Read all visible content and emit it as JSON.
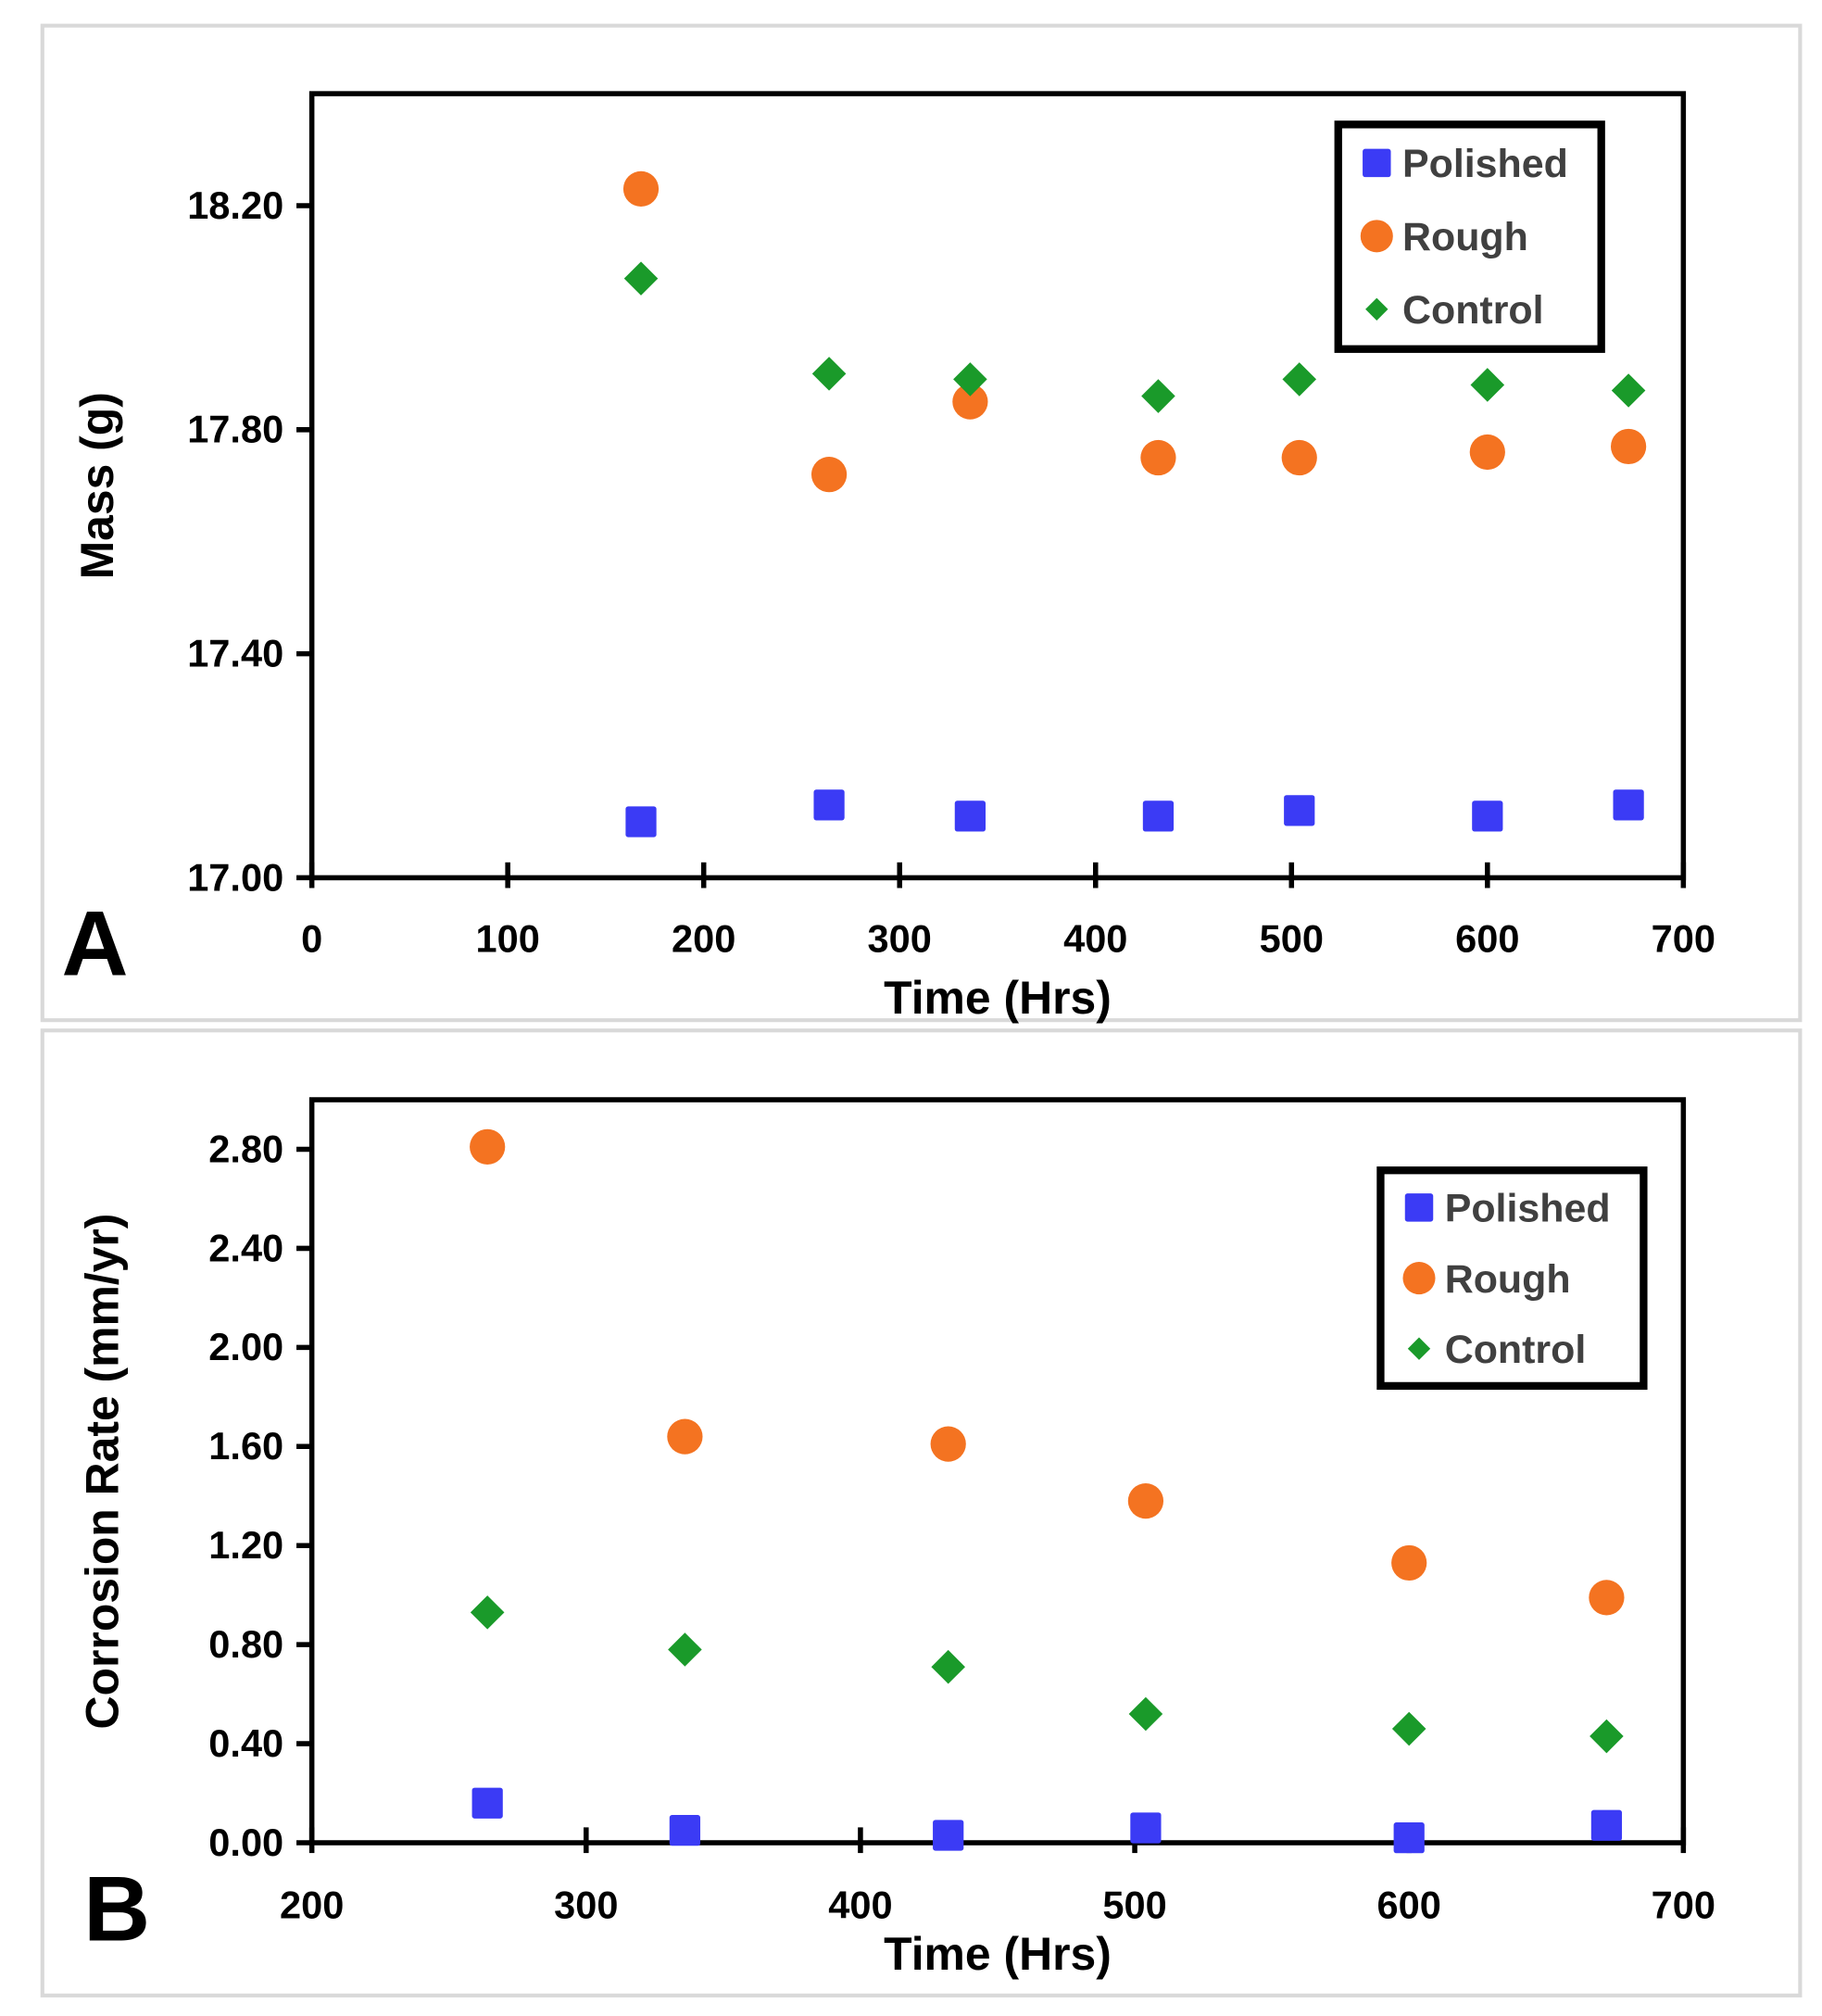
{
  "colors": {
    "Polished": "#3b3bf5",
    "Rough": "#f47321",
    "Control": "#1a9a2a"
  },
  "chart_data": [
    {
      "type": "scatter",
      "panel_label": "A",
      "title": "",
      "xlabel": "Time (Hrs)",
      "ylabel": "Mass (g)",
      "xlim": [
        0,
        700
      ],
      "ylim": [
        17.0,
        18.4
      ],
      "xticks": [
        0,
        100,
        200,
        300,
        400,
        500,
        600,
        700
      ],
      "xtick_labels": [
        "0",
        "100",
        "200",
        "300",
        "400",
        "500",
        "600",
        "700"
      ],
      "yticks": [
        17.0,
        17.4,
        17.8,
        18.2
      ],
      "ytick_labels": [
        "17.00",
        "17.40",
        "17.80",
        "18.20"
      ],
      "grid": false,
      "legend_position": "top-right",
      "series": [
        {
          "name": "Polished",
          "marker": "square",
          "x": [
            168,
            264,
            336,
            432,
            504,
            600,
            672
          ],
          "y": [
            17.1,
            17.13,
            17.11,
            17.11,
            17.12,
            17.11,
            17.13
          ]
        },
        {
          "name": "Rough",
          "marker": "circle",
          "x": [
            168,
            264,
            336,
            432,
            504,
            600,
            672
          ],
          "y": [
            18.23,
            17.72,
            17.85,
            17.75,
            17.75,
            17.76,
            17.77
          ]
        },
        {
          "name": "Control",
          "marker": "diamond",
          "x": [
            168,
            264,
            336,
            432,
            504,
            600,
            672
          ],
          "y": [
            18.07,
            17.9,
            17.89,
            17.86,
            17.89,
            17.88,
            17.87
          ]
        }
      ]
    },
    {
      "type": "scatter",
      "panel_label": "B",
      "title": "",
      "xlabel": "Time (Hrs)",
      "ylabel": "Corrosion Rate (mm/yr)",
      "xlim": [
        200,
        700
      ],
      "ylim": [
        0,
        3.0
      ],
      "xticks": [
        200,
        300,
        400,
        500,
        600,
        700
      ],
      "xtick_labels": [
        "200",
        "300",
        "400",
        "500",
        "600",
        "700"
      ],
      "yticks": [
        0,
        0.4,
        0.8,
        1.2,
        1.6,
        2.0,
        2.4,
        2.8
      ],
      "ytick_labels": [
        "0.00",
        "0.40",
        "0.80",
        "1.20",
        "1.60",
        "2.00",
        "2.40",
        "2.80"
      ],
      "grid": false,
      "legend_position": "top-right",
      "series": [
        {
          "name": "Polished",
          "marker": "square",
          "x": [
            264,
            336,
            432,
            504,
            600,
            672
          ],
          "y": [
            0.16,
            0.05,
            0.03,
            0.06,
            0.02,
            0.07
          ]
        },
        {
          "name": "Rough",
          "marker": "circle",
          "x": [
            264,
            336,
            432,
            504,
            600,
            672
          ],
          "y": [
            2.81,
            1.64,
            1.61,
            1.38,
            1.13,
            0.99
          ]
        },
        {
          "name": "Control",
          "marker": "diamond",
          "x": [
            264,
            336,
            432,
            504,
            600,
            672
          ],
          "y": [
            0.93,
            0.78,
            0.71,
            0.52,
            0.46,
            0.43
          ]
        }
      ]
    }
  ]
}
